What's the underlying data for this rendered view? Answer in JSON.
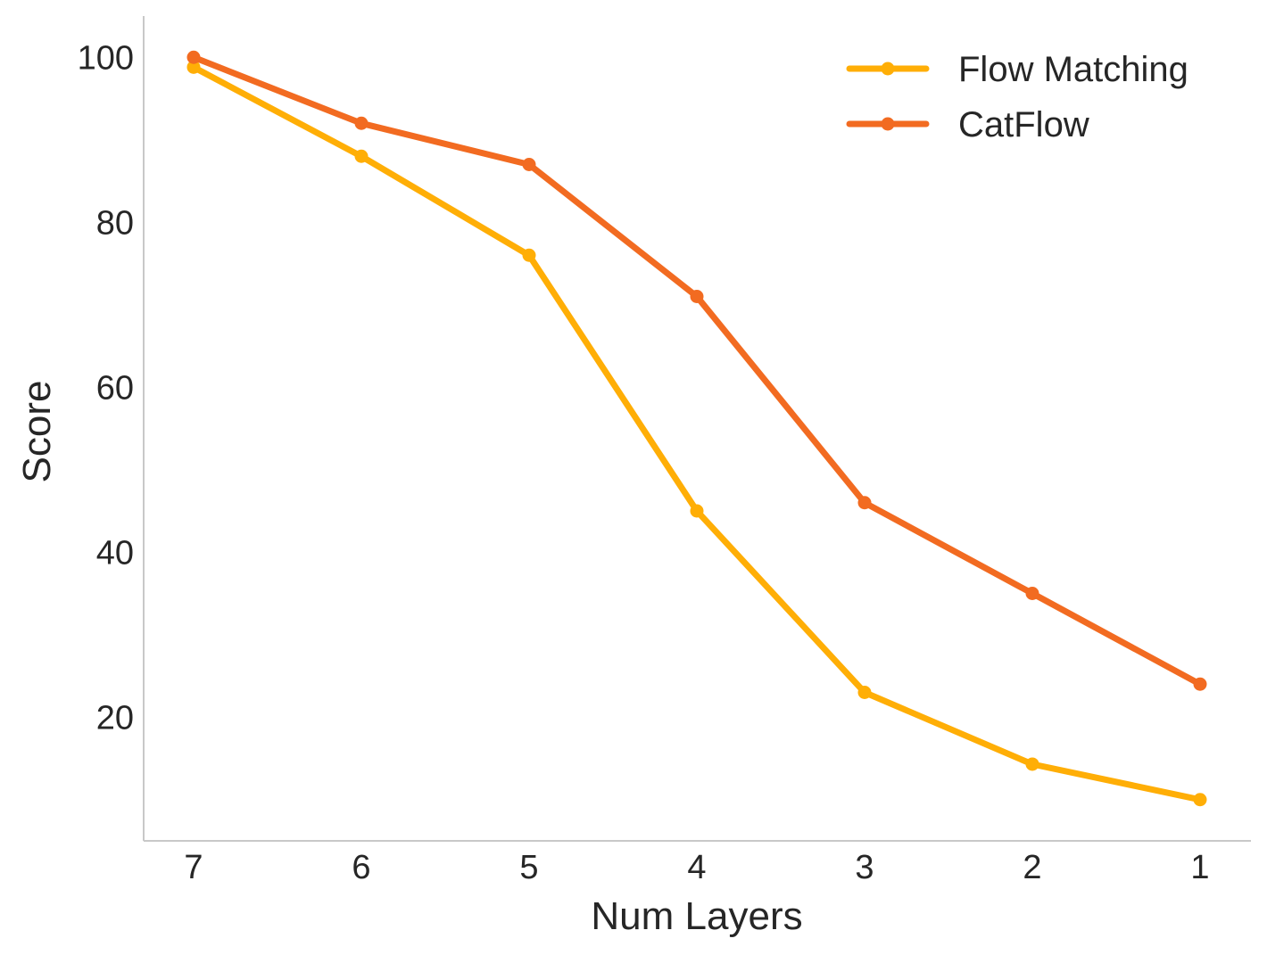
{
  "chart_data": {
    "type": "line",
    "title": "",
    "xlabel": "Num Layers",
    "ylabel": "Score",
    "x": [
      7,
      6,
      5,
      4,
      3,
      2,
      1
    ],
    "x_ticks": [
      "7",
      "6",
      "5",
      "4",
      "3",
      "2",
      "1"
    ],
    "x_reversed": true,
    "y_ticks": [
      "20",
      "40",
      "60",
      "80",
      "100"
    ],
    "ylim": [
      5,
      105
    ],
    "grid": false,
    "legend_position": "top-right",
    "series": [
      {
        "name": "Flow Matching",
        "color": "#FFAE06",
        "values": [
          98.8,
          88.0,
          76.0,
          45.0,
          23.0,
          14.3,
          10.0
        ]
      },
      {
        "name": "CatFlow",
        "color": "#F26B21",
        "values": [
          100.0,
          92.0,
          87.0,
          71.0,
          46.0,
          35.0,
          24.0
        ]
      }
    ]
  }
}
